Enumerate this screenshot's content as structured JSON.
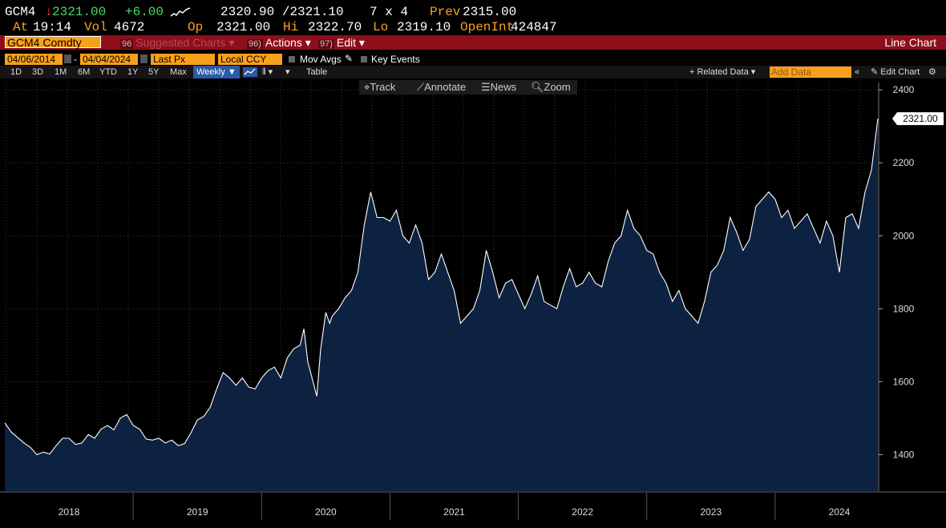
{
  "quote": {
    "ticker": "GCM4",
    "last_price": "2321.00",
    "change": "+6.00",
    "bid_ask": "2320.90 /2321.10",
    "size": "7 x 4",
    "prev_label": "Prev",
    "prev": "2315.00",
    "at_label": "At",
    "time": "19:14",
    "vol_label": "Vol",
    "vol": "4672",
    "op_label": "Op",
    "op": "2321.00",
    "hi_label": "Hi",
    "hi": "2322.70",
    "lo_label": "Lo",
    "lo": "2319.10",
    "oi_label": "OpenInt",
    "oi": "424847"
  },
  "toolbar": {
    "security": "GCM4 Comdty",
    "suggested_num": "96",
    "suggested": "Suggested Charts",
    "actions_num": "96)",
    "actions": "Actions",
    "edit_num": "97)",
    "edit": "Edit",
    "chart_type": "Line Chart"
  },
  "settings": {
    "start_date": "04/06/2014",
    "end_date": "04/04/2024",
    "field": "Last Px",
    "currency": "Local CCY",
    "mov_avgs": "Mov Avgs",
    "key_events": "Key Events"
  },
  "periods": {
    "items": [
      "1D",
      "3D",
      "1M",
      "6M",
      "YTD",
      "1Y",
      "5Y",
      "Max"
    ],
    "frequency": "Weekly",
    "table": "Table",
    "related": "+ Related Data",
    "add_data_placeholder": "Add Data",
    "edit_chart": "Edit Chart"
  },
  "chart_tools": {
    "track": "Track",
    "annotate": "Annotate",
    "news": "News",
    "zoom": "Zoom"
  },
  "colors": {
    "accent": "#f9a01b",
    "up": "#4cd964",
    "down": "#ff3b30",
    "area_fill": "#0d2240",
    "toolbar_red": "#8e0e1b"
  },
  "chart_data": {
    "type": "area",
    "title": "",
    "xlabel": "",
    "ylabel": "",
    "ylim": [
      1300,
      2420
    ],
    "yticks": [
      1400,
      1600,
      1800,
      2000,
      2200,
      2400
    ],
    "last_value_label": "2321.00",
    "grid": true,
    "x_year_labels": [
      "2018",
      "2019",
      "2020",
      "2021",
      "2022",
      "2023",
      "2024"
    ],
    "x_year_positions": [
      2018.0,
      2019.0,
      2020.0,
      2021.0,
      2022.0,
      2023.0,
      2024.0
    ],
    "x_year_boundaries": [
      2018.5,
      2019.5,
      2020.5,
      2021.5,
      2022.5,
      2023.5
    ],
    "xlim": [
      2017.5,
      2024.3
    ],
    "series": [
      {
        "points": [
          [
            2017.5,
            1487
          ],
          [
            2017.55,
            1462
          ],
          [
            2017.6,
            1447
          ],
          [
            2017.65,
            1432
          ],
          [
            2017.7,
            1420
          ],
          [
            2017.75,
            1400
          ],
          [
            2017.8,
            1407
          ],
          [
            2017.85,
            1402
          ],
          [
            2017.9,
            1425
          ],
          [
            2017.95,
            1445
          ],
          [
            2018.0,
            1445
          ],
          [
            2018.05,
            1428
          ],
          [
            2018.1,
            1432
          ],
          [
            2018.15,
            1455
          ],
          [
            2018.2,
            1445
          ],
          [
            2018.25,
            1470
          ],
          [
            2018.3,
            1480
          ],
          [
            2018.35,
            1468
          ],
          [
            2018.4,
            1500
          ],
          [
            2018.45,
            1510
          ],
          [
            2018.5,
            1480
          ],
          [
            2018.55,
            1470
          ],
          [
            2018.6,
            1443
          ],
          [
            2018.65,
            1440
          ],
          [
            2018.7,
            1445
          ],
          [
            2018.75,
            1432
          ],
          [
            2018.8,
            1440
          ],
          [
            2018.85,
            1425
          ],
          [
            2018.9,
            1430
          ],
          [
            2018.95,
            1460
          ],
          [
            2019.0,
            1495
          ],
          [
            2019.05,
            1505
          ],
          [
            2019.1,
            1530
          ],
          [
            2019.15,
            1580
          ],
          [
            2019.2,
            1625
          ],
          [
            2019.25,
            1610
          ],
          [
            2019.3,
            1590
          ],
          [
            2019.35,
            1610
          ],
          [
            2019.4,
            1585
          ],
          [
            2019.45,
            1580
          ],
          [
            2019.5,
            1610
          ],
          [
            2019.55,
            1630
          ],
          [
            2019.6,
            1640
          ],
          [
            2019.65,
            1610
          ],
          [
            2019.7,
            1665
          ],
          [
            2019.75,
            1690
          ],
          [
            2019.8,
            1700
          ],
          [
            2019.83,
            1745
          ],
          [
            2019.86,
            1655
          ],
          [
            2019.9,
            1600
          ],
          [
            2019.93,
            1560
          ],
          [
            2019.96,
            1690
          ],
          [
            2020.0,
            1790
          ],
          [
            2020.03,
            1760
          ],
          [
            2020.05,
            1780
          ],
          [
            2020.1,
            1800
          ],
          [
            2020.15,
            1830
          ],
          [
            2020.2,
            1850
          ],
          [
            2020.25,
            1900
          ],
          [
            2020.3,
            2030
          ],
          [
            2020.35,
            2120
          ],
          [
            2020.4,
            2050
          ],
          [
            2020.45,
            2050
          ],
          [
            2020.5,
            2040
          ],
          [
            2020.55,
            2070
          ],
          [
            2020.6,
            2000
          ],
          [
            2020.65,
            1980
          ],
          [
            2020.7,
            2030
          ],
          [
            2020.75,
            1980
          ],
          [
            2020.8,
            1880
          ],
          [
            2020.85,
            1900
          ],
          [
            2020.9,
            1950
          ],
          [
            2020.95,
            1900
          ],
          [
            2021.0,
            1850
          ],
          [
            2021.05,
            1760
          ],
          [
            2021.1,
            1780
          ],
          [
            2021.15,
            1800
          ],
          [
            2021.2,
            1850
          ],
          [
            2021.25,
            1960
          ],
          [
            2021.3,
            1900
          ],
          [
            2021.35,
            1830
          ],
          [
            2021.4,
            1870
          ],
          [
            2021.45,
            1880
          ],
          [
            2021.5,
            1840
          ],
          [
            2021.55,
            1800
          ],
          [
            2021.6,
            1840
          ],
          [
            2021.65,
            1890
          ],
          [
            2021.7,
            1820
          ],
          [
            2021.75,
            1810
          ],
          [
            2021.8,
            1800
          ],
          [
            2021.85,
            1860
          ],
          [
            2021.9,
            1910
          ],
          [
            2021.95,
            1860
          ],
          [
            2022.0,
            1870
          ],
          [
            2022.05,
            1900
          ],
          [
            2022.1,
            1870
          ],
          [
            2022.15,
            1860
          ],
          [
            2022.2,
            1930
          ],
          [
            2022.25,
            1980
          ],
          [
            2022.3,
            2000
          ],
          [
            2022.35,
            2070
          ],
          [
            2022.4,
            2020
          ],
          [
            2022.45,
            2000
          ],
          [
            2022.5,
            1960
          ],
          [
            2022.55,
            1950
          ],
          [
            2022.6,
            1900
          ],
          [
            2022.65,
            1870
          ],
          [
            2022.7,
            1820
          ],
          [
            2022.75,
            1850
          ],
          [
            2022.8,
            1800
          ],
          [
            2022.85,
            1780
          ],
          [
            2022.9,
            1760
          ],
          [
            2022.95,
            1820
          ],
          [
            2023.0,
            1900
          ],
          [
            2023.05,
            1920
          ],
          [
            2023.1,
            1960
          ],
          [
            2023.15,
            2050
          ],
          [
            2023.2,
            2010
          ],
          [
            2023.25,
            1960
          ],
          [
            2023.3,
            1990
          ],
          [
            2023.35,
            2080
          ],
          [
            2023.4,
            2100
          ],
          [
            2023.45,
            2120
          ],
          [
            2023.5,
            2100
          ],
          [
            2023.55,
            2050
          ],
          [
            2023.6,
            2070
          ],
          [
            2023.65,
            2020
          ],
          [
            2023.7,
            2040
          ],
          [
            2023.75,
            2060
          ],
          [
            2023.8,
            2020
          ],
          [
            2023.85,
            1980
          ],
          [
            2023.9,
            2040
          ],
          [
            2023.95,
            2000
          ],
          [
            2024.0,
            1900
          ],
          [
            2024.05,
            2050
          ],
          [
            2024.1,
            2060
          ],
          [
            2024.15,
            2020
          ],
          [
            2024.2,
            2120
          ],
          [
            2024.25,
            2180
          ],
          [
            2024.3,
            2321
          ]
        ]
      }
    ]
  }
}
